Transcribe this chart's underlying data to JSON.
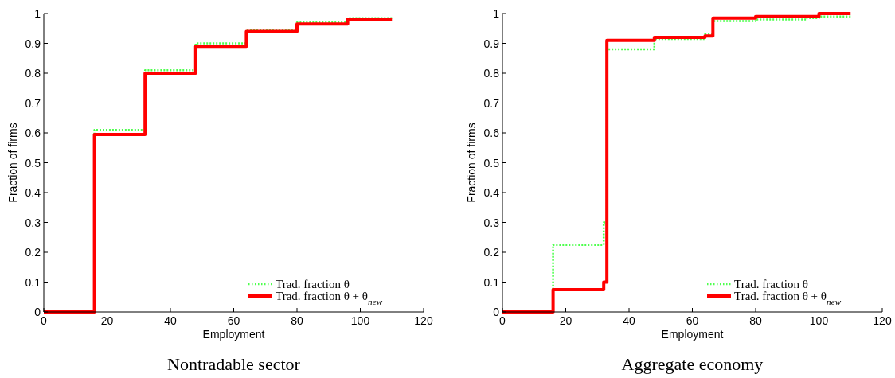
{
  "chart_data": [
    {
      "type": "step",
      "title": "Nontradable sector",
      "xlabel": "Employment",
      "ylabel": "Fraction of firms",
      "xlim": [
        0,
        120
      ],
      "xticks": [
        0,
        20,
        40,
        60,
        80,
        100,
        120
      ],
      "ylim": [
        0,
        1
      ],
      "yticks": [
        0,
        0.1,
        0.2,
        0.3,
        0.4,
        0.5,
        0.6,
        0.7,
        0.8,
        0.9,
        1
      ],
      "legend": "bottom right",
      "series": [
        {
          "name": "Trad. fraction θ",
          "color": "#4dff4d",
          "line_style": "dotted",
          "x": [
            0,
            16,
            32,
            48,
            64,
            80,
            96,
            110
          ],
          "values": [
            0,
            0.61,
            0.81,
            0.9,
            0.945,
            0.97,
            0.985,
            0.985
          ]
        },
        {
          "name": "Trad. fraction θ + θ$_{new}$",
          "color": "#ff0000",
          "line_style": "solid",
          "x": [
            0,
            16,
            32,
            48,
            64,
            80,
            96,
            110
          ],
          "values": [
            0,
            0.595,
            0.8,
            0.89,
            0.94,
            0.965,
            0.98,
            0.98
          ]
        }
      ]
    },
    {
      "type": "step",
      "title": "Aggregate economy",
      "xlabel": "Employment",
      "ylabel": "Fraction of firms",
      "xlim": [
        0,
        120
      ],
      "xticks": [
        0,
        20,
        40,
        60,
        80,
        100,
        120
      ],
      "ylim": [
        0,
        1
      ],
      "yticks": [
        0,
        0.1,
        0.2,
        0.3,
        0.4,
        0.5,
        0.6,
        0.7,
        0.8,
        0.9,
        1
      ],
      "legend": "bottom right",
      "series": [
        {
          "name": "Trad. fraction θ",
          "color": "#4dff4d",
          "line_style": "dotted",
          "x": [
            0,
            16,
            32,
            33,
            48,
            64,
            66.5,
            80,
            96,
            100,
            110
          ],
          "values": [
            0,
            0.225,
            0.3,
            0.88,
            0.915,
            0.93,
            0.975,
            0.98,
            0.985,
            0.99,
            0.99
          ]
        },
        {
          "name": "Trad. fraction θ + θ$_{new}$",
          "color": "#ff0000",
          "line_style": "solid",
          "x": [
            0,
            16,
            32,
            33,
            48,
            64,
            66.5,
            80,
            96,
            100,
            110
          ],
          "values": [
            0,
            0.075,
            0.1,
            0.91,
            0.92,
            0.925,
            0.985,
            0.99,
            0.99,
            1.0,
            1.0
          ]
        }
      ]
    }
  ]
}
